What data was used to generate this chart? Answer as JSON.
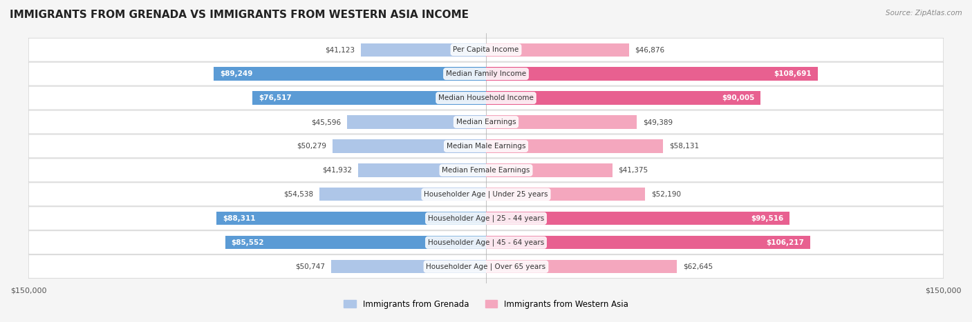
{
  "title": "IMMIGRANTS FROM GRENADA VS IMMIGRANTS FROM WESTERN ASIA INCOME",
  "source": "Source: ZipAtlas.com",
  "categories": [
    "Per Capita Income",
    "Median Family Income",
    "Median Household Income",
    "Median Earnings",
    "Median Male Earnings",
    "Median Female Earnings",
    "Householder Age | Under 25 years",
    "Householder Age | 25 - 44 years",
    "Householder Age | 45 - 64 years",
    "Householder Age | Over 65 years"
  ],
  "grenada_values": [
    41123,
    89249,
    76517,
    45596,
    50279,
    41932,
    54538,
    88311,
    85552,
    50747
  ],
  "western_asia_values": [
    46876,
    108691,
    90005,
    49389,
    58131,
    41375,
    52190,
    99516,
    106217,
    62645
  ],
  "grenada_labels": [
    "$41,123",
    "$89,249",
    "$76,517",
    "$45,596",
    "$50,279",
    "$41,932",
    "$54,538",
    "$88,311",
    "$85,552",
    "$50,747"
  ],
  "western_asia_labels": [
    "$46,876",
    "$108,691",
    "$90,005",
    "$49,389",
    "$58,131",
    "$41,375",
    "$52,190",
    "$99,516",
    "$106,217",
    "$62,645"
  ],
  "grenada_color_light": "#aec6e8",
  "grenada_color_dark": "#5b9bd5",
  "western_asia_color_light": "#f4a7be",
  "western_asia_color_dark": "#e86090",
  "axis_limit": 150000,
  "bg_color": "#f5f5f5",
  "row_bg_color": "#ffffff",
  "legend_grenada": "Immigrants from Grenada",
  "legend_western_asia": "Immigrants from Western Asia",
  "grenada_threshold": 70000,
  "western_asia_threshold": 70000
}
